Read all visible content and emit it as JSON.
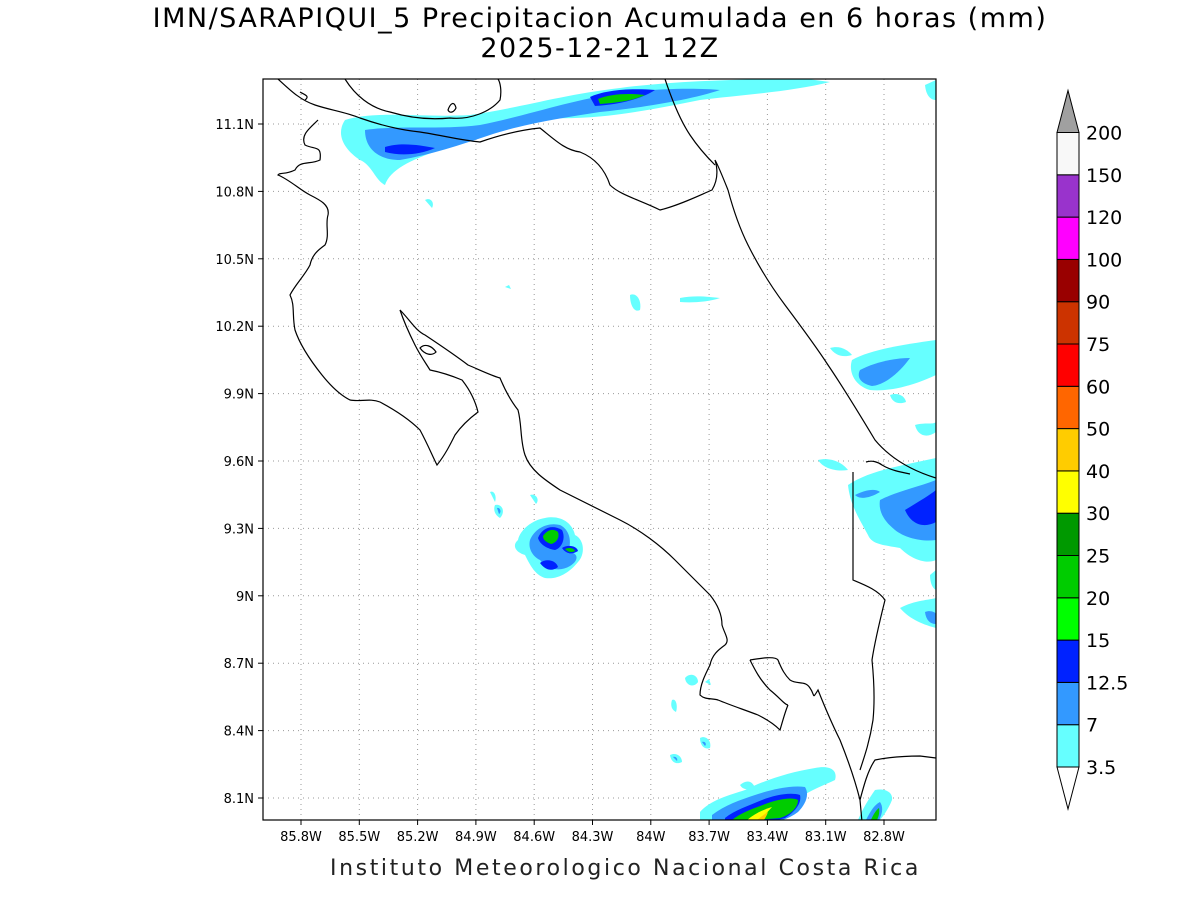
{
  "title": {
    "line1": "IMN/SARAPIQUI_5 Precipitacion Acumulada en 6 horas (mm)",
    "line2": "2025-12-21 12Z"
  },
  "footer": "Instituto Meteorologico Nacional Costa Rica",
  "axes": {
    "longitude_ticks": [
      "85.8W",
      "85.5W",
      "85.2W",
      "84.9W",
      "84.6W",
      "84.3W",
      "84W",
      "83.7W",
      "83.4W",
      "83.1W",
      "82.8W"
    ],
    "latitude_ticks": [
      "11.1N",
      "10.8N",
      "10.5N",
      "10.2N",
      "9.9N",
      "9.6N",
      "9.3N",
      "9N",
      "8.7N",
      "8.4N",
      "8.1N"
    ],
    "grid": "dotted"
  },
  "colorbar": {
    "labels": [
      "3.5",
      "7",
      "12.5",
      "15",
      "20",
      "25",
      "30",
      "40",
      "50",
      "60",
      "75",
      "90",
      "100",
      "120",
      "150",
      "200"
    ],
    "colors": [
      "#66ffff",
      "#3399ff",
      "#0022ff",
      "#00ff00",
      "#00cc00",
      "#009900",
      "#ffff00",
      "#ffcc00",
      "#ff6600",
      "#ff0000",
      "#cc3300",
      "#990000",
      "#ff00ff",
      "#9933cc",
      "#f8f8f8"
    ],
    "over_color": "#a0a0a0",
    "under_color": "#ffffff"
  }
}
